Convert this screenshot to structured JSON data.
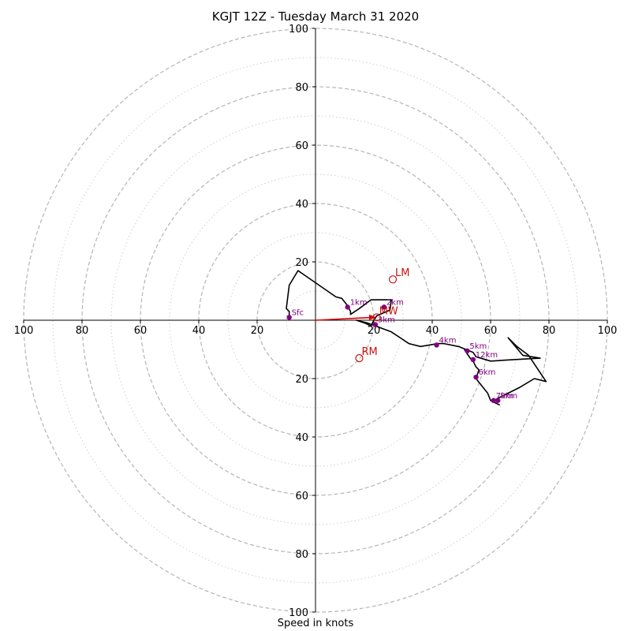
{
  "chart_data": {
    "type": "line",
    "subtype": "hodograph",
    "title": "KGJT 12Z - Tuesday March 31 2020",
    "xlabel": "Speed in knots",
    "xlim": [
      -100,
      100
    ],
    "ylim": [
      -100,
      100
    ],
    "rings_major": [
      20,
      40,
      60,
      80,
      100
    ],
    "rings_minor": [
      10,
      30,
      50,
      70,
      90
    ],
    "tick_labels_x": [
      "100",
      "80",
      "60",
      "40",
      "20",
      "20",
      "40",
      "60",
      "80",
      "100"
    ],
    "tick_labels_y": [
      "100",
      "80",
      "60",
      "40",
      "20",
      "20",
      "40",
      "60",
      "80",
      "100"
    ],
    "tick_values": [
      -100,
      -80,
      -60,
      -40,
      -20,
      20,
      40,
      60,
      80,
      100
    ],
    "trace": {
      "color": "#000000",
      "points": [
        [
          -9,
          1
        ],
        [
          -9,
          3
        ],
        [
          -10,
          4
        ],
        [
          -9,
          12
        ],
        [
          -6,
          17
        ],
        [
          7,
          8
        ],
        [
          9,
          7.5
        ],
        [
          11,
          5
        ],
        [
          12,
          3
        ],
        [
          12,
          2
        ],
        [
          15,
          4
        ],
        [
          19,
          7
        ],
        [
          26,
          7
        ],
        [
          25.5,
          3.5
        ],
        [
          21,
          1.5
        ],
        [
          20,
          0
        ],
        [
          19,
          -2
        ],
        [
          17,
          -1
        ],
        [
          14,
          0
        ],
        [
          18,
          -1
        ],
        [
          26,
          -4
        ],
        [
          32,
          -8
        ],
        [
          36,
          -9
        ],
        [
          42,
          -8
        ],
        [
          44,
          -8
        ],
        [
          49,
          -9
        ],
        [
          54,
          -11
        ],
        [
          55,
          -12.5
        ],
        [
          60,
          -14
        ],
        [
          68,
          -13.5
        ],
        [
          77,
          -13
        ],
        [
          71,
          -12
        ],
        [
          66,
          -6
        ],
        [
          69,
          -9
        ],
        [
          73,
          -12
        ],
        [
          79,
          -21
        ],
        [
          75,
          -20
        ],
        [
          70,
          -23
        ],
        [
          66,
          -25
        ],
        [
          62,
          -27
        ],
        [
          61,
          -28
        ],
        [
          63,
          -29
        ],
        [
          60,
          -27.5
        ],
        [
          59,
          -25
        ],
        [
          55,
          -20
        ],
        [
          56,
          -17
        ],
        [
          55,
          -16
        ],
        [
          54,
          -14
        ],
        [
          53,
          -13
        ],
        [
          51,
          -10
        ]
      ]
    },
    "height_markers": [
      {
        "label": "Sfc",
        "u": -9,
        "v": 1
      },
      {
        "label": "1km",
        "u": 11,
        "v": 4.5
      },
      {
        "label": "2km",
        "u": 23.5,
        "v": 4.5
      },
      {
        "label": "3km",
        "u": 20.5,
        "v": -1.5
      },
      {
        "label": "4km",
        "u": 41.5,
        "v": -8.5
      },
      {
        "label": "5km",
        "u": 52,
        "v": -10.5
      },
      {
        "label": "6km",
        "u": 55,
        "v": -19.5
      },
      {
        "label": "7km",
        "u": 61,
        "v": -27.5
      },
      {
        "label": "8km",
        "u": 62.5,
        "v": -27.5
      },
      {
        "label": "12km",
        "u": 54,
        "v": -13.5
      }
    ],
    "marker_color": "#800080",
    "motion_points": [
      {
        "label": "LM",
        "u": 26.5,
        "v": 14
      },
      {
        "label": "RM",
        "u": 15,
        "v": -13
      },
      {
        "label": "MW",
        "u": 21,
        "v": 1
      }
    ],
    "motion_color": "#cc1111",
    "shear_vector": {
      "from": [
        0,
        0
      ],
      "to": [
        20,
        1
      ],
      "color": "#dd0000"
    }
  }
}
